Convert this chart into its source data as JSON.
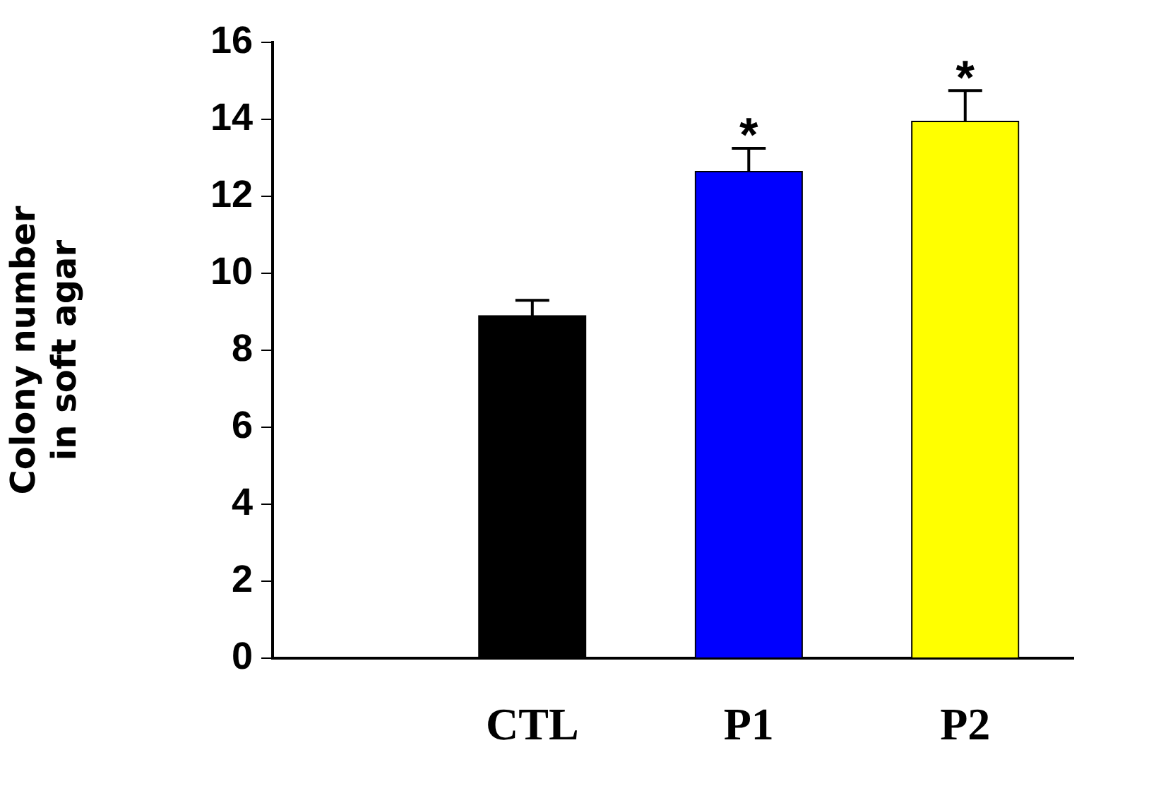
{
  "chart_data": {
    "type": "bar",
    "ylabel": "Colony number\nin soft agar",
    "categories": [
      "CTL",
      "P1",
      "P2"
    ],
    "values": [
      8.9,
      12.65,
      13.95
    ],
    "colors": [
      "#000000",
      "#0000ff",
      "#ffff00"
    ],
    "errors": [
      [
        8.9,
        9.3
      ],
      [
        12.65,
        13.25
      ],
      [
        13.95,
        14.75
      ]
    ],
    "ylim": [
      0,
      16
    ],
    "yticks": [
      0,
      2,
      4,
      6,
      8,
      10,
      12,
      14,
      16
    ],
    "grid": false,
    "legend": false,
    "annotations": [
      {
        "text": "*",
        "x": "P1",
        "y": 13.4
      },
      {
        "text": "*",
        "x": "P2",
        "y": 14.9
      }
    ]
  }
}
